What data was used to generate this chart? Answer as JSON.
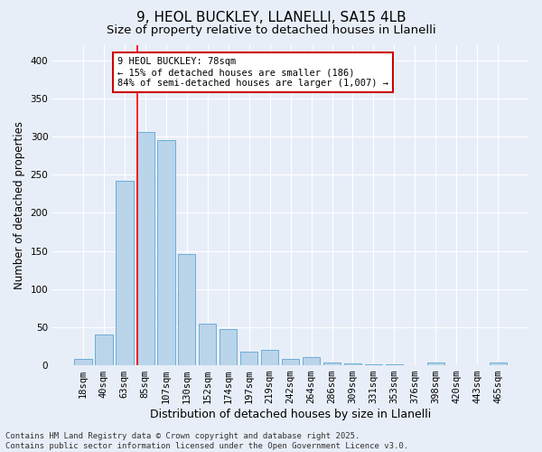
{
  "title": "9, HEOL BUCKLEY, LLANELLI, SA15 4LB",
  "subtitle": "Size of property relative to detached houses in Llanelli",
  "xlabel": "Distribution of detached houses by size in Llanelli",
  "ylabel": "Number of detached properties",
  "bar_color": "#bad4ea",
  "bar_edge_color": "#6aaed6",
  "background_color": "#e8eef8",
  "grid_color": "#ffffff",
  "categories": [
    "18sqm",
    "40sqm",
    "63sqm",
    "85sqm",
    "107sqm",
    "130sqm",
    "152sqm",
    "174sqm",
    "197sqm",
    "219sqm",
    "242sqm",
    "264sqm",
    "286sqm",
    "309sqm",
    "331sqm",
    "353sqm",
    "376sqm",
    "398sqm",
    "420sqm",
    "443sqm",
    "465sqm"
  ],
  "values": [
    8,
    40,
    242,
    306,
    296,
    146,
    55,
    48,
    18,
    20,
    8,
    11,
    4,
    3,
    1,
    1,
    0,
    4,
    0,
    0,
    4
  ],
  "ylim": [
    0,
    420
  ],
  "yticks": [
    0,
    50,
    100,
    150,
    200,
    250,
    300,
    350,
    400
  ],
  "red_line_x": 2.62,
  "annotation_text": "9 HEOL BUCKLEY: 78sqm\n← 15% of detached houses are smaller (186)\n84% of semi-detached houses are larger (1,007) →",
  "annotation_border_color": "#cc0000",
  "footer_text": "Contains HM Land Registry data © Crown copyright and database right 2025.\nContains public sector information licensed under the Open Government Licence v3.0.",
  "title_fontsize": 11,
  "subtitle_fontsize": 9.5,
  "xlabel_fontsize": 9,
  "ylabel_fontsize": 8.5,
  "tick_fontsize": 7.5,
  "annotation_fontsize": 7.5,
  "footer_fontsize": 6.5
}
